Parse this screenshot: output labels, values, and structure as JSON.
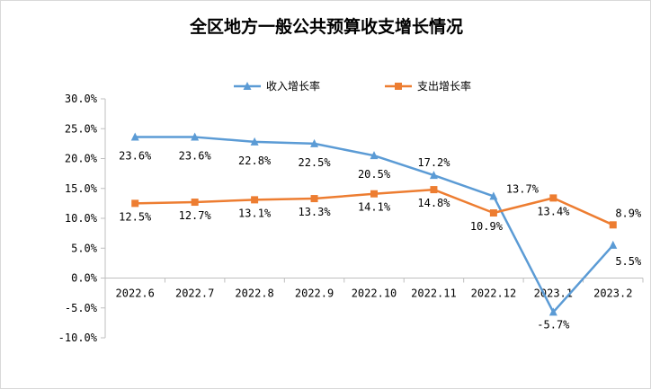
{
  "chart_data": {
    "type": "line",
    "title": "全区地方一般公共预算收支增长情况",
    "categories": [
      "2022.6",
      "2022.7",
      "2022.8",
      "2022.9",
      "2022.10",
      "2022.11",
      "2022.12",
      "2023.1",
      "2023.2"
    ],
    "series": [
      {
        "name": "收入增长率",
        "color": "#5b9bd5",
        "marker": "triangle",
        "values": [
          23.6,
          23.6,
          22.8,
          22.5,
          20.5,
          17.2,
          13.7,
          -5.7,
          5.5
        ],
        "labels": [
          "23.6%",
          "23.6%",
          "22.8%",
          "22.5%",
          "20.5%",
          "17.2%",
          "13.7%",
          "-5.7%",
          "5.5%"
        ]
      },
      {
        "name": "支出增长率",
        "color": "#ed7d31",
        "marker": "square",
        "values": [
          12.5,
          12.7,
          13.1,
          13.3,
          14.1,
          14.8,
          10.9,
          13.4,
          8.9
        ],
        "labels": [
          "12.5%",
          "12.7%",
          "13.1%",
          "13.3%",
          "14.1%",
          "14.8%",
          "10.9%",
          "13.4%",
          "8.9%"
        ]
      }
    ],
    "ylim": [
      -10,
      30
    ],
    "yticks": [
      30,
      25,
      20,
      15,
      10,
      5,
      0,
      -5,
      -10
    ],
    "ytick_labels": [
      "30.0%",
      "25.0%",
      "20.0%",
      "15.0%",
      "10.0%",
      "5.0%",
      "0.0%",
      "-5.0%",
      "-10.0%"
    ],
    "grid": false,
    "legend_position": "top-center"
  }
}
